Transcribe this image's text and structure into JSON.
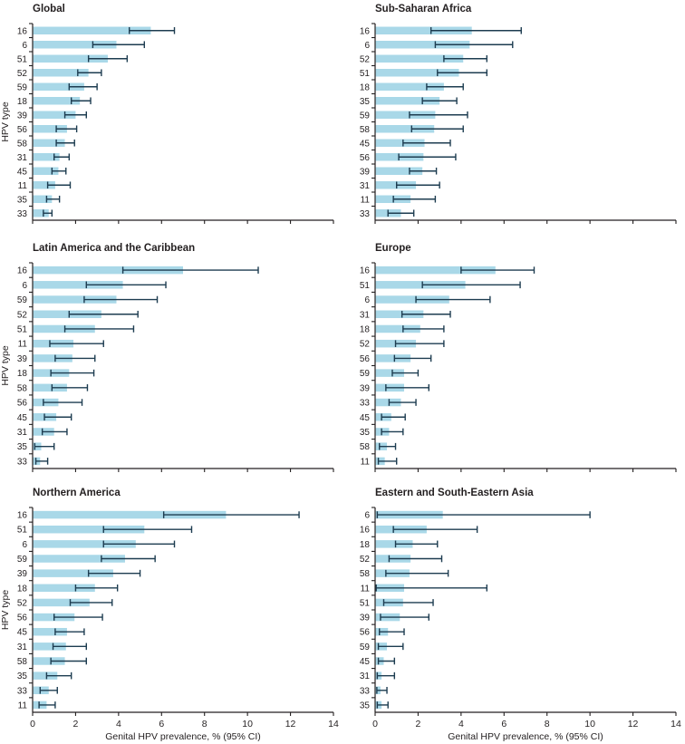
{
  "page": {
    "background": "#ffffff"
  },
  "colors": {
    "bar": "#a9d8e8",
    "error_bar": "#1d3c50",
    "axis": "#231f20",
    "text": "#231f20"
  },
  "axis": {
    "xlabel": "Genital HPV prevalence, % (95% CI)",
    "ylabel": "HPV type",
    "xlim": [
      0,
      14
    ],
    "xticks": [
      0,
      2,
      4,
      6,
      8,
      10,
      12,
      14
    ]
  },
  "chart_data": [
    {
      "type": "bar",
      "orientation": "horizontal",
      "title": "Global",
      "categories": [
        "16",
        "6",
        "51",
        "52",
        "59",
        "18",
        "39",
        "56",
        "58",
        "31",
        "45",
        "11",
        "35",
        "33"
      ],
      "values": [
        5.5,
        3.9,
        3.5,
        2.6,
        2.4,
        2.2,
        2.0,
        1.6,
        1.5,
        1.25,
        1.2,
        1.05,
        0.9,
        0.75
      ],
      "ci_low": [
        4.5,
        2.8,
        2.6,
        2.1,
        1.7,
        1.8,
        1.5,
        1.1,
        1.1,
        1.0,
        0.9,
        0.7,
        0.65,
        0.5
      ],
      "ci_high": [
        6.6,
        5.2,
        4.4,
        3.2,
        3.0,
        2.7,
        2.5,
        2.05,
        1.95,
        1.7,
        1.55,
        1.75,
        1.25,
        0.9
      ]
    },
    {
      "type": "bar",
      "orientation": "horizontal",
      "title": "Sub-Saharan Africa",
      "categories": [
        "16",
        "6",
        "52",
        "51",
        "18",
        "35",
        "59",
        "58",
        "45",
        "56",
        "39",
        "31",
        "11",
        "33"
      ],
      "values": [
        4.5,
        4.4,
        4.1,
        3.9,
        3.2,
        3.0,
        2.8,
        2.75,
        2.3,
        2.25,
        2.2,
        1.9,
        1.65,
        1.2
      ],
      "ci_low": [
        2.6,
        2.8,
        3.2,
        2.9,
        2.4,
        2.2,
        1.6,
        1.7,
        1.3,
        1.1,
        1.6,
        1.0,
        0.85,
        0.6
      ],
      "ci_high": [
        6.8,
        6.4,
        5.2,
        5.2,
        4.1,
        3.8,
        4.3,
        4.1,
        3.5,
        3.75,
        2.85,
        3.0,
        2.8,
        1.8
      ]
    },
    {
      "type": "bar",
      "orientation": "horizontal",
      "title": "Latin America and the Caribbean",
      "categories": [
        "16",
        "6",
        "59",
        "52",
        "51",
        "11",
        "39",
        "18",
        "58",
        "56",
        "45",
        "31",
        "35",
        "33"
      ],
      "values": [
        7.0,
        4.2,
        3.9,
        3.2,
        2.9,
        1.9,
        1.85,
        1.7,
        1.6,
        1.2,
        1.1,
        1.0,
        0.4,
        0.35
      ],
      "ci_low": [
        4.2,
        2.5,
        2.4,
        1.7,
        1.5,
        0.8,
        1.05,
        0.85,
        0.9,
        0.5,
        0.55,
        0.45,
        0.1,
        0.15
      ],
      "ci_high": [
        10.5,
        6.2,
        5.8,
        4.9,
        4.7,
        3.3,
        2.9,
        2.85,
        2.55,
        2.3,
        1.8,
        1.6,
        1.0,
        0.7
      ]
    },
    {
      "type": "bar",
      "orientation": "horizontal",
      "title": "Europe",
      "categories": [
        "16",
        "51",
        "6",
        "31",
        "18",
        "52",
        "56",
        "59",
        "39",
        "33",
        "45",
        "35",
        "58",
        "11"
      ],
      "values": [
        5.6,
        4.2,
        3.45,
        2.25,
        2.1,
        1.9,
        1.65,
        1.35,
        1.35,
        1.2,
        0.75,
        0.65,
        0.55,
        0.45
      ],
      "ci_low": [
        4.0,
        2.2,
        1.9,
        1.25,
        1.3,
        0.95,
        0.9,
        0.8,
        0.5,
        0.65,
        0.3,
        0.3,
        0.2,
        0.15
      ],
      "ci_high": [
        7.4,
        6.75,
        5.35,
        3.5,
        3.2,
        3.2,
        2.6,
        2.0,
        2.5,
        1.9,
        1.4,
        1.3,
        0.95,
        1.0
      ]
    },
    {
      "type": "bar",
      "orientation": "horizontal",
      "title": "Northern America",
      "categories": [
        "16",
        "51",
        "6",
        "59",
        "39",
        "18",
        "52",
        "56",
        "45",
        "31",
        "58",
        "35",
        "33",
        "11"
      ],
      "values": [
        9.0,
        5.2,
        4.8,
        4.3,
        3.75,
        2.9,
        2.65,
        1.95,
        1.6,
        1.55,
        1.5,
        1.15,
        0.75,
        0.65
      ],
      "ci_low": [
        6.1,
        3.3,
        3.3,
        3.2,
        2.6,
        2.0,
        1.75,
        1.0,
        1.05,
        0.95,
        0.85,
        0.65,
        0.35,
        0.3
      ],
      "ci_high": [
        12.4,
        7.4,
        6.6,
        5.7,
        5.0,
        3.95,
        3.7,
        3.25,
        2.4,
        2.5,
        2.5,
        1.8,
        1.15,
        1.05
      ]
    },
    {
      "type": "bar",
      "orientation": "horizontal",
      "title": "Eastern and South-Eastern Asia",
      "categories": [
        "6",
        "16",
        "18",
        "52",
        "58",
        "11",
        "51",
        "39",
        "56",
        "59",
        "45",
        "31",
        "33",
        "35"
      ],
      "values": [
        3.15,
        2.4,
        1.75,
        1.65,
        1.6,
        1.35,
        1.3,
        1.15,
        0.6,
        0.55,
        0.4,
        0.3,
        0.25,
        0.3
      ],
      "ci_low": [
        0.1,
        0.85,
        0.95,
        0.65,
        0.5,
        0.05,
        0.4,
        0.25,
        0.2,
        0.15,
        0.15,
        0.1,
        0.08,
        0.1
      ],
      "ci_high": [
        10.0,
        4.75,
        2.9,
        3.1,
        3.4,
        5.2,
        2.7,
        2.5,
        1.35,
        1.3,
        0.9,
        0.9,
        0.55,
        0.6
      ]
    }
  ]
}
